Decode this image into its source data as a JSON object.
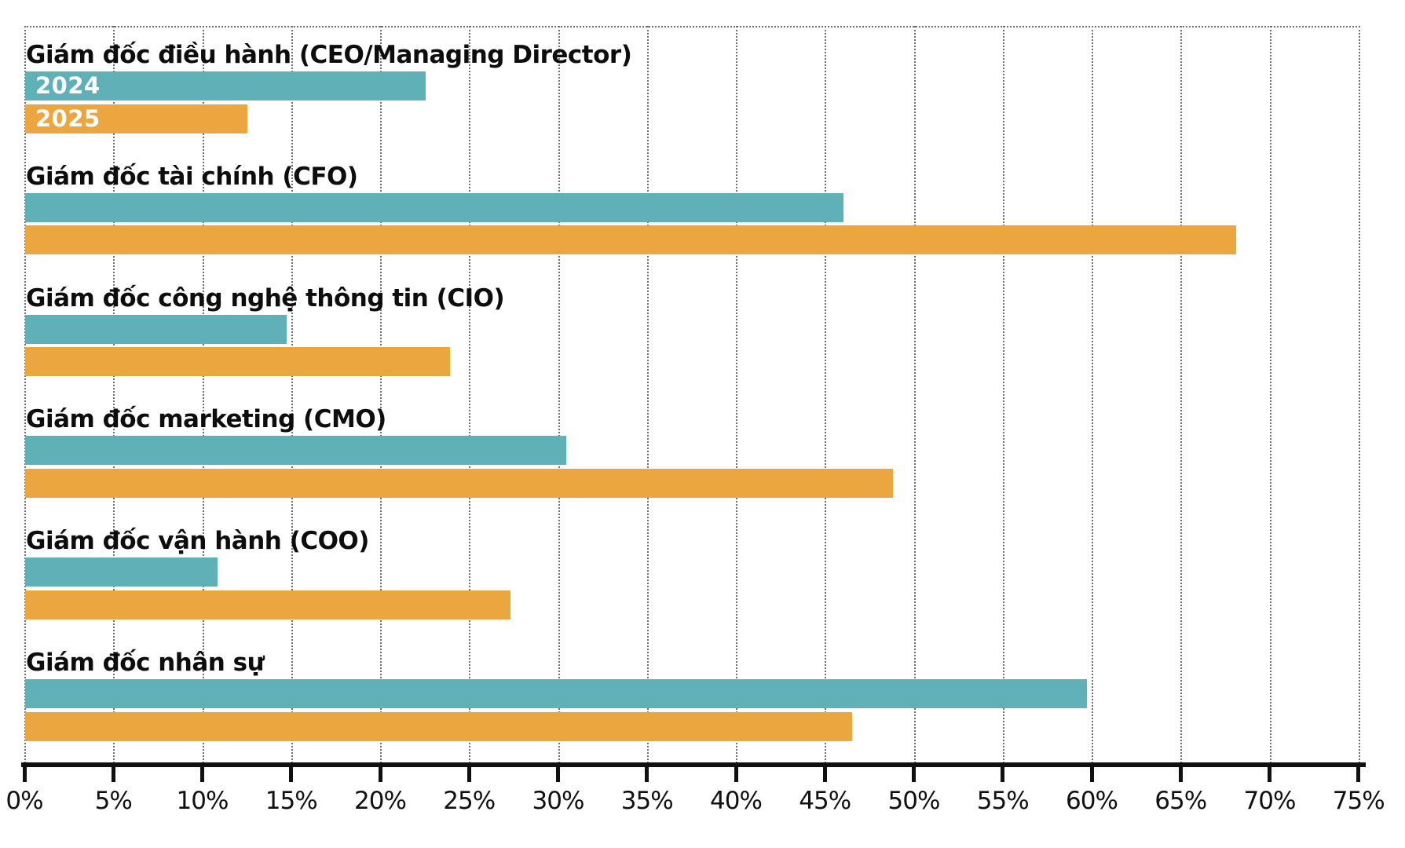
{
  "chart_data": {
    "type": "bar",
    "orientation": "horizontal",
    "title": "",
    "categories": [
      "Giám đốc điều hành (CEO/Managing Director)",
      "Giám đốc tài chính (CFO)",
      "Giám đốc công nghệ thông tin (CIO)",
      "Giám đốc marketing (CMO)",
      "Giám đốc vận hành (COO)",
      "Giám đốc nhân sự"
    ],
    "series": [
      {
        "name": "2024",
        "color": "#5FB0B7",
        "values": [
          22.5,
          46.0,
          14.7,
          30.4,
          10.8,
          59.7
        ]
      },
      {
        "name": "2025",
        "color": "#EBA63F",
        "values": [
          12.5,
          68.1,
          23.9,
          48.8,
          27.3,
          46.5
        ]
      }
    ],
    "value_unit": "%",
    "x_axis": {
      "min": 0,
      "max": 75,
      "tick_step": 5,
      "tick_labels": [
        "0%",
        "5%",
        "10%",
        "15%",
        "20%",
        "25%",
        "30%",
        "35%",
        "40%",
        "45%",
        "50%",
        "55%",
        "60%",
        "65%",
        "70%",
        "75%"
      ]
    },
    "grid": "dotted-vertical",
    "legend": "series names shown as white labels inside the first category's bars only"
  },
  "colors": {
    "series_2024": "#5FB0B7",
    "series_2025": "#EBA63F",
    "axis": "#101010",
    "gridline": "#6e6e6e",
    "category_label": "#0d0d0d",
    "background": "#ffffff"
  }
}
